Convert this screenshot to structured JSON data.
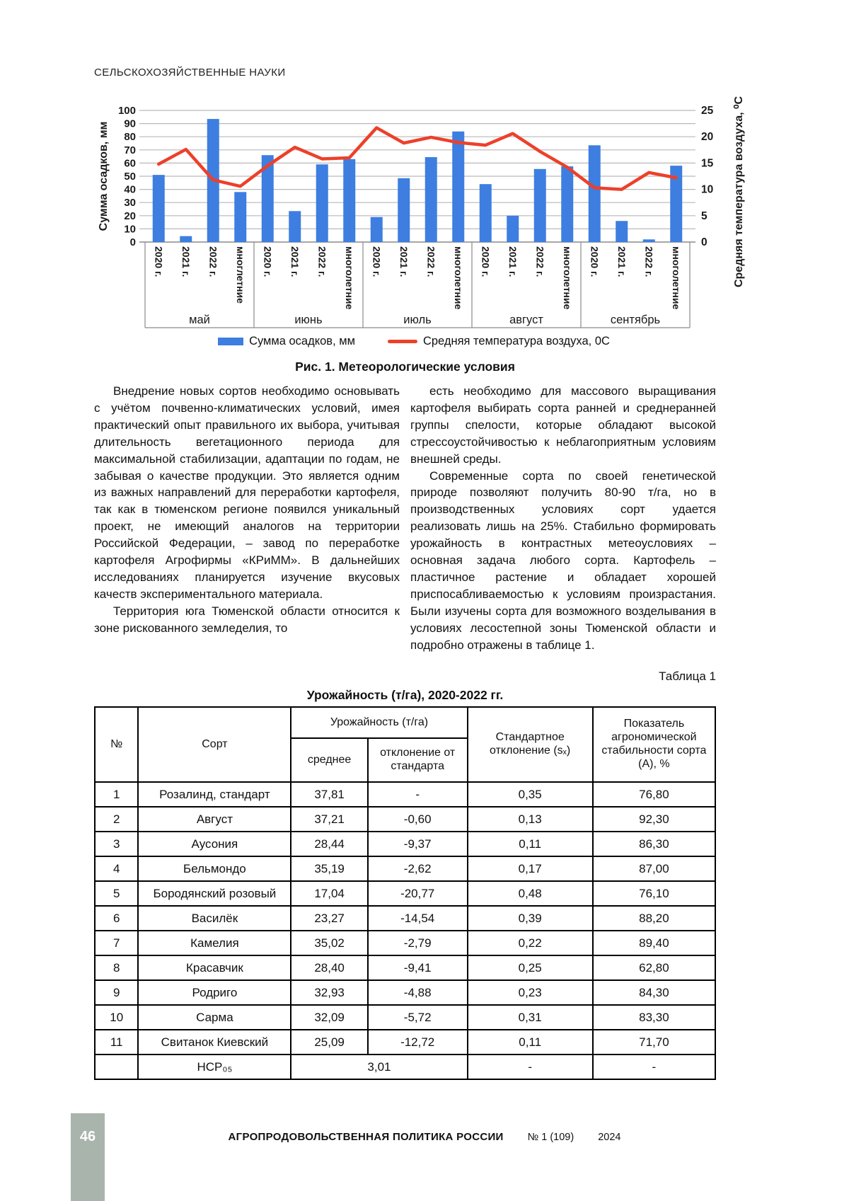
{
  "running_head": "СЕЛЬСКОХОЗЯЙСТВЕННЫЕ НАУКИ",
  "figure": {
    "caption": "Рис. 1. Метеорологические условия"
  },
  "chart_data": {
    "type": "bar+line",
    "months": [
      "май",
      "июнь",
      "июль",
      "август",
      "сентябрь"
    ],
    "bar_labels": [
      "2020 г.",
      "2021 г.",
      "2022 г.",
      "многлетние",
      "2020 г.",
      "2021 г.",
      "2022 г.",
      "многолетние",
      "2020 г.",
      "2021 г.",
      "2022 г.",
      "многолетние",
      "2020 г.",
      "2021 г.",
      "2022 г.",
      "многолетние",
      "2020 г.",
      "2021 г.",
      "2022 г.",
      "многолетние"
    ],
    "series": [
      {
        "name": "Сумма осадков, мм",
        "type": "bar",
        "axis": "left",
        "color": "#3D7EE0",
        "values": [
          51,
          4.5,
          93.5,
          38,
          66,
          23.5,
          59,
          63,
          19,
          48.5,
          64.5,
          84,
          44,
          20,
          55.5,
          57.5,
          73.5,
          16,
          2,
          58
        ]
      },
      {
        "name": "Средняя температура воздуха, 0С",
        "type": "line",
        "axis": "right",
        "color": "#ED402A",
        "values": [
          14.8,
          17.6,
          11.8,
          10.6,
          14.5,
          18.0,
          15.8,
          16.0,
          21.7,
          18.8,
          19.9,
          18.9,
          18.4,
          20.6,
          17.2,
          14.2,
          10.3,
          10.0,
          13.2,
          12.2
        ]
      }
    ],
    "left_axis": {
      "label": "Сумма осадков, мм",
      "min": 0,
      "max": 100,
      "step": 10
    },
    "right_axis": {
      "label": "Средняя температура воздуха, ⁰С",
      "min": 0,
      "max": 25,
      "step": 5
    },
    "legend": [
      {
        "label": "Сумма осадков, мм"
      },
      {
        "label": "Средняя температура воздуха, 0С"
      }
    ],
    "grid": "horizontal"
  },
  "article": {
    "left_column": [
      "Внедрение новых сортов необходимо основывать с учётом почвенно-климатических условий, имея практический опыт правильного их выбора, учитывая длительность вегетационного периода для максимальной стабилизации, адаптации по годам, не забывая о качестве продукции. Это является одним из важных направлений для переработки картофеля, так как в тюменском регионе появился уникальный проект, не имеющий аналогов на территории Российской Федерации, – завод по переработке картофеля Агрофирмы «КРиММ». В дальнейших исследованиях планируется изучение вкусовых качеств экспериментального материала.",
      "Территория юга Тюменской области относится к зоне рискованного земледелия, то"
    ],
    "right_column": [
      "есть необходимо для массового выращивания картофеля выбирать сорта ранней и среднеранней группы спелости, которые обладают высокой стрессоустойчивостью к неблагоприятным условиям внешней среды.",
      "Современные сорта по своей генетической природе позволяют получить 80-90 т/га, но в производственных условиях сорт удается реализовать лишь на 25%. Стабильно формировать урожайность в контрастных метеоусловиях – основная задача любого сорта. Картофель –пластичное растение и обладает хорошей приспосабливаемостью к условиям произрастания. Были изучены сорта для возможного возделывания в условиях лесостепной зоны Тюменской области и подробно отражены в таблице 1."
    ]
  },
  "table": {
    "label": "Таблица 1",
    "title": "Урожайность (т/га), 2020-2022 гг.",
    "headers": {
      "num": "№",
      "variety": "Сорт",
      "yield_group": "Урожайность (т/га)",
      "avg": "среднее",
      "deviation": "отклонение от стандарта",
      "std": "Стандартное отклонение (sₓ)",
      "stability": "Показатель агрономической стабильности сорта (А), %"
    },
    "rows": [
      {
        "num": "1",
        "variety": "Розалинд, стандарт",
        "avg": "37,81",
        "dev": "-",
        "sd": "0,35",
        "stab": "76,80"
      },
      {
        "num": "2",
        "variety": "Август",
        "avg": "37,21",
        "dev": "-0,60",
        "sd": "0,13",
        "stab": "92,30"
      },
      {
        "num": "3",
        "variety": "Аусония",
        "avg": "28,44",
        "dev": "-9,37",
        "sd": "0,11",
        "stab": "86,30"
      },
      {
        "num": "4",
        "variety": "Бельмондо",
        "avg": "35,19",
        "dev": "-2,62",
        "sd": "0,17",
        "stab": "87,00"
      },
      {
        "num": "5",
        "variety": "Бородянский розовый",
        "avg": "17,04",
        "dev": "-20,77",
        "sd": "0,48",
        "stab": "76,10"
      },
      {
        "num": "6",
        "variety": "Василёк",
        "avg": "23,27",
        "dev": "-14,54",
        "sd": "0,39",
        "stab": "88,20"
      },
      {
        "num": "7",
        "variety": "Камелия",
        "avg": "35,02",
        "dev": "-2,79",
        "sd": "0,22",
        "stab": "89,40"
      },
      {
        "num": "8",
        "variety": "Красавчик",
        "avg": "28,40",
        "dev": "-9,41",
        "sd": "0,25",
        "stab": "62,80"
      },
      {
        "num": "9",
        "variety": "Родриго",
        "avg": "32,93",
        "dev": "-4,88",
        "sd": "0,23",
        "stab": "84,30"
      },
      {
        "num": "10",
        "variety": "Сарма",
        "avg": "32,09",
        "dev": "-5,72",
        "sd": "0,31",
        "stab": "83,30"
      },
      {
        "num": "11",
        "variety": "Свитанок Киевский",
        "avg": "25,09",
        "dev": "-12,72",
        "sd": "0,11",
        "stab": "71,70"
      }
    ],
    "footer_row": {
      "num": "",
      "label": "НСР₀₅",
      "value": "3,01",
      "sd": "-",
      "stab": "-"
    }
  },
  "footer": {
    "journal": "АГРОПРОДОВОЛЬСТВЕННАЯ ПОЛИТИКА РОССИИ",
    "issue": "№ 1 (109)",
    "year": "2024",
    "page_number": "46"
  }
}
